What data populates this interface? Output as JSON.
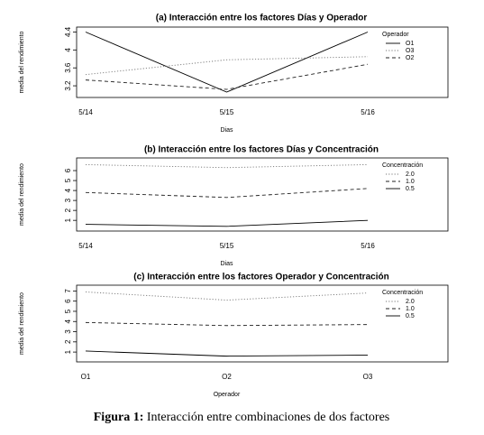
{
  "chart_data": [
    {
      "type": "line",
      "title": "(a) Interacción entre los factores Días y Operador",
      "categories": [
        "5/14",
        "5/15",
        "5/16"
      ],
      "x_label": "Dias",
      "y_label": "media del rendimiento",
      "ylim": [
        3.0,
        4.45
      ],
      "yticks": [
        3.2,
        3.6,
        4.0,
        4.4
      ],
      "legend_title": "Operador",
      "legend": "top-right",
      "series": [
        {
          "name": "O1",
          "color": "#000000",
          "dash": "solid",
          "values": [
            4.4,
            3.06,
            4.4
          ]
        },
        {
          "name": "O3",
          "color": "#777777",
          "dash": "dotted",
          "values": [
            3.45,
            3.78,
            3.85
          ]
        },
        {
          "name": "O2",
          "color": "#222222",
          "dash": "dashed",
          "values": [
            3.33,
            3.12,
            3.68
          ]
        }
      ]
    },
    {
      "type": "line",
      "title": "(b) Interacción entre los factores Días y Concentración",
      "categories": [
        "5/14",
        "5/15",
        "5/16"
      ],
      "x_label": "Dias",
      "y_label": "media del rendimiento",
      "ylim": [
        0.2,
        7.0
      ],
      "yticks": [
        1,
        2,
        3,
        4,
        5,
        6
      ],
      "legend_title": "Concentración",
      "legend": "top-right",
      "series": [
        {
          "name": "2.0",
          "color": "#777777",
          "dash": "dotted",
          "values": [
            6.6,
            6.3,
            6.6
          ]
        },
        {
          "name": "1.0",
          "color": "#222222",
          "dash": "dashed",
          "values": [
            3.8,
            3.3,
            4.2
          ]
        },
        {
          "name": "0.5",
          "color": "#000000",
          "dash": "solid",
          "values": [
            0.6,
            0.4,
            1.0
          ]
        }
      ]
    },
    {
      "type": "line",
      "title": "(c) Interacción entre los factores Operador y Concentración",
      "categories": [
        "O1",
        "O2",
        "O3"
      ],
      "x_label": "Operador",
      "y_label": "media del rendimiento",
      "ylim": [
        0.3,
        7.3
      ],
      "yticks": [
        1,
        2,
        3,
        4,
        5,
        6,
        7
      ],
      "legend_title": "Concentración",
      "legend": "top-right",
      "series": [
        {
          "name": "2.0",
          "color": "#777777",
          "dash": "dotted",
          "values": [
            6.9,
            6.1,
            6.8
          ]
        },
        {
          "name": "1.0",
          "color": "#222222",
          "dash": "dashed",
          "values": [
            3.9,
            3.6,
            3.7
          ]
        },
        {
          "name": "0.5",
          "color": "#000000",
          "dash": "solid",
          "values": [
            1.1,
            0.6,
            0.7
          ]
        }
      ]
    }
  ],
  "caption": {
    "label": "Figura 1:",
    "text": "Interacción entre combinaciones de dos factores"
  }
}
